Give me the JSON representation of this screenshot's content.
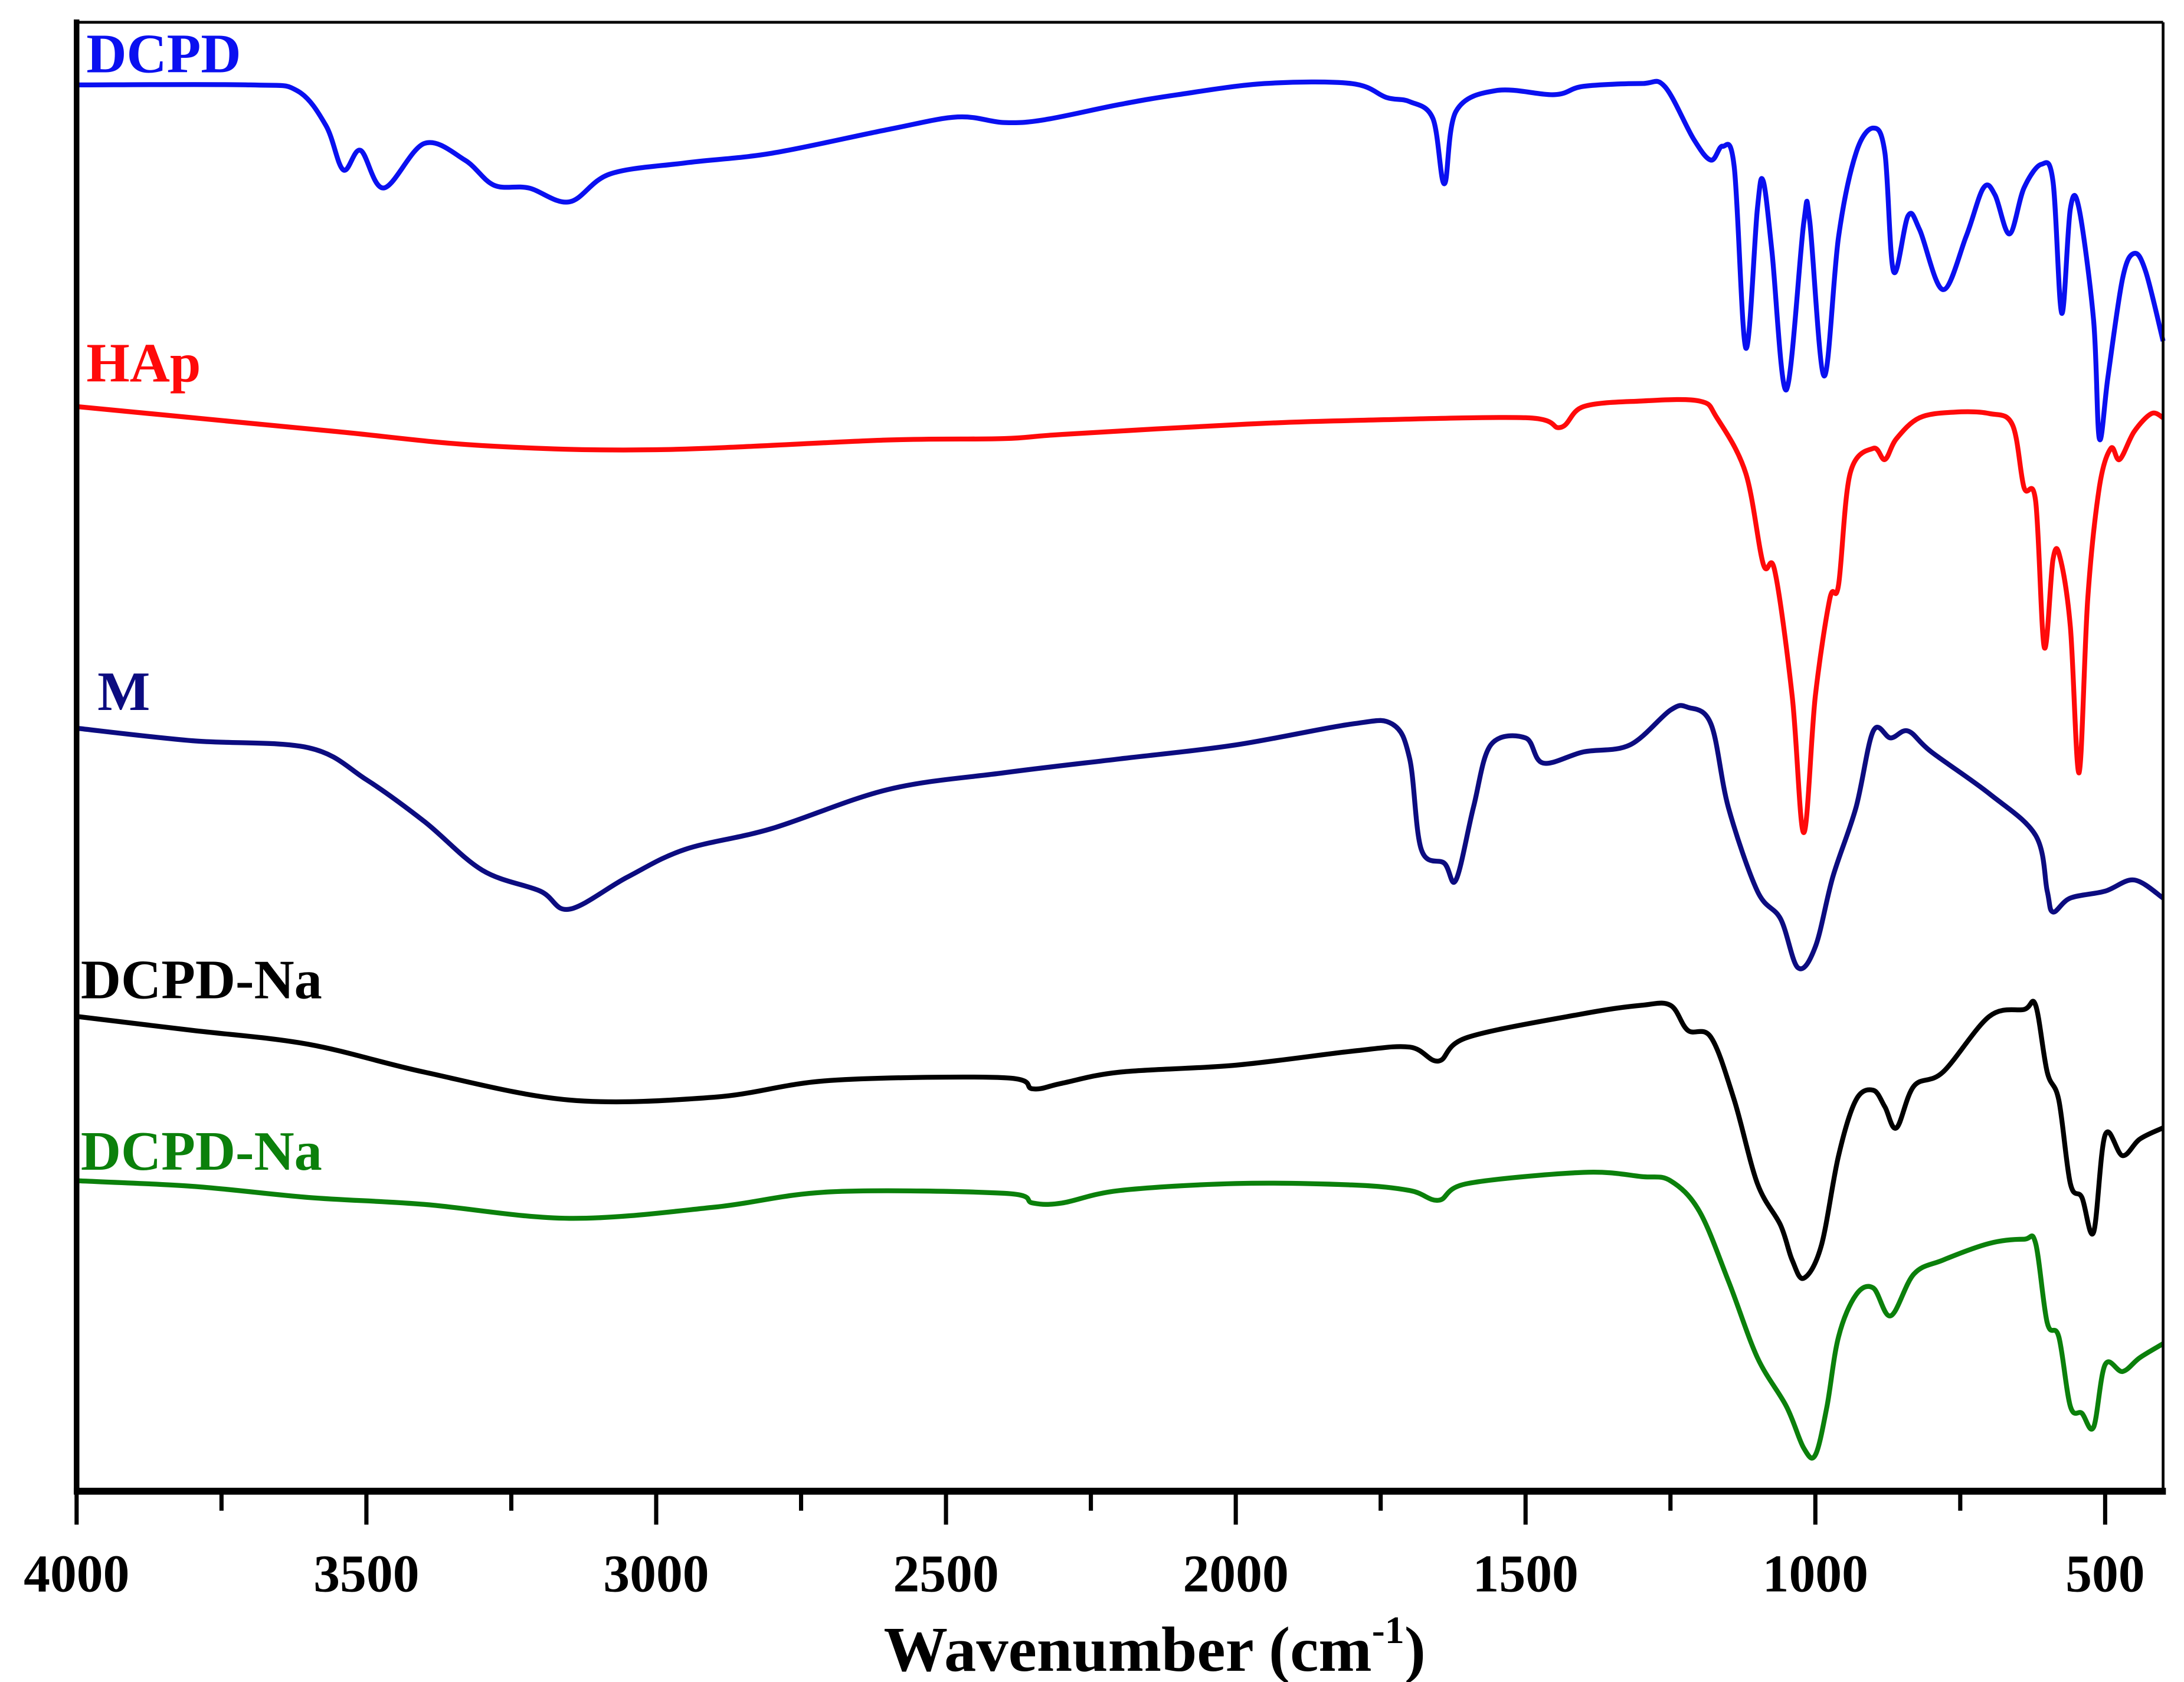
{
  "chart_data": {
    "type": "line",
    "title": "",
    "xlabel": "Wavenumber (cm",
    "xlabel_sup": "-1",
    "xlabel_close": ")",
    "ylabel": "",
    "xlim": [
      4000,
      400
    ],
    "ylim": [
      0,
      1054
    ],
    "y_units": "arbitrary (stacked transmittance)",
    "grid": false,
    "x_ticks": [
      4000,
      3500,
      3000,
      2500,
      2000,
      1500,
      1000,
      500
    ],
    "x_minor_ticks": [
      3750,
      3250,
      2750,
      2250,
      1750,
      1250,
      750
    ],
    "series": [
      {
        "name": "DCPD",
        "color": "#0a10f0",
        "points": [
          [
            4000,
            1009
          ],
          [
            3700,
            1009
          ],
          [
            3620,
            1005
          ],
          [
            3570,
            980
          ],
          [
            3540,
            948
          ],
          [
            3510,
            962
          ],
          [
            3470,
            935
          ],
          [
            3400,
            967
          ],
          [
            3330,
            955
          ],
          [
            3280,
            937
          ],
          [
            3220,
            935
          ],
          [
            3150,
            925
          ],
          [
            3080,
            945
          ],
          [
            2950,
            953
          ],
          [
            2800,
            960
          ],
          [
            2600,
            977
          ],
          [
            2480,
            986
          ],
          [
            2400,
            982
          ],
          [
            2330,
            984
          ],
          [
            2200,
            995
          ],
          [
            2100,
            1002
          ],
          [
            1950,
            1010
          ],
          [
            1800,
            1010
          ],
          [
            1740,
            1000
          ],
          [
            1700,
            997
          ],
          [
            1660,
            985
          ],
          [
            1640,
            938
          ],
          [
            1620,
            990
          ],
          [
            1550,
            1005
          ],
          [
            1450,
            1002
          ],
          [
            1400,
            1008
          ],
          [
            1300,
            1010
          ],
          [
            1260,
            1008
          ],
          [
            1210,
            970
          ],
          [
            1180,
            955
          ],
          [
            1160,
            965
          ],
          [
            1140,
            950
          ],
          [
            1120,
            820
          ],
          [
            1100,
            920
          ],
          [
            1090,
            940
          ],
          [
            1075,
            890
          ],
          [
            1050,
            790
          ],
          [
            1020,
            910
          ],
          [
            1010,
            912
          ],
          [
            985,
            800
          ],
          [
            960,
            900
          ],
          [
            930,
            960
          ],
          [
            900,
            978
          ],
          [
            880,
            960
          ],
          [
            865,
            875
          ],
          [
            840,
            915
          ],
          [
            820,
            905
          ],
          [
            780,
            862
          ],
          [
            740,
            900
          ],
          [
            710,
            935
          ],
          [
            690,
            930
          ],
          [
            665,
            902
          ],
          [
            640,
            935
          ],
          [
            610,
            952
          ],
          [
            590,
            940
          ],
          [
            575,
            845
          ],
          [
            560,
            920
          ],
          [
            545,
            920
          ],
          [
            520,
            840
          ],
          [
            510,
            755
          ],
          [
            495,
            800
          ],
          [
            470,
            870
          ],
          [
            450,
            888
          ],
          [
            430,
            875
          ],
          [
            400,
            825
          ]
        ]
      },
      {
        "name": "HAp",
        "color": "#ff0a0a",
        "points": [
          [
            4000,
            778
          ],
          [
            3800,
            770
          ],
          [
            3550,
            760
          ],
          [
            3300,
            750
          ],
          [
            3000,
            747
          ],
          [
            2600,
            754
          ],
          [
            2400,
            755
          ],
          [
            2300,
            758
          ],
          [
            2000,
            765
          ],
          [
            1800,
            768
          ],
          [
            1500,
            770
          ],
          [
            1440,
            763
          ],
          [
            1400,
            778
          ],
          [
            1300,
            782
          ],
          [
            1200,
            782
          ],
          [
            1170,
            770
          ],
          [
            1120,
            730
          ],
          [
            1090,
            665
          ],
          [
            1070,
            660
          ],
          [
            1040,
            570
          ],
          [
            1020,
            472
          ],
          [
            1000,
            570
          ],
          [
            975,
            640
          ],
          [
            960,
            650
          ],
          [
            940,
            730
          ],
          [
            900,
            748
          ],
          [
            880,
            740
          ],
          [
            860,
            755
          ],
          [
            820,
            770
          ],
          [
            760,
            774
          ],
          [
            700,
            773
          ],
          [
            660,
            765
          ],
          [
            640,
            720
          ],
          [
            620,
            710
          ],
          [
            605,
            605
          ],
          [
            590,
            668
          ],
          [
            578,
            670
          ],
          [
            560,
            620
          ],
          [
            545,
            515
          ],
          [
            530,
            640
          ],
          [
            510,
            720
          ],
          [
            490,
            748
          ],
          [
            475,
            740
          ],
          [
            450,
            760
          ],
          [
            420,
            773
          ],
          [
            400,
            770
          ]
        ]
      },
      {
        "name": "M",
        "color": "#0c0c80",
        "points": [
          [
            4000,
            547
          ],
          [
            3800,
            538
          ],
          [
            3600,
            533
          ],
          [
            3500,
            510
          ],
          [
            3400,
            480
          ],
          [
            3300,
            445
          ],
          [
            3200,
            430
          ],
          [
            3150,
            417
          ],
          [
            3050,
            440
          ],
          [
            2950,
            460
          ],
          [
            2800,
            475
          ],
          [
            2600,
            503
          ],
          [
            2400,
            515
          ],
          [
            2200,
            525
          ],
          [
            2000,
            535
          ],
          [
            1800,
            550
          ],
          [
            1730,
            550
          ],
          [
            1700,
            525
          ],
          [
            1680,
            460
          ],
          [
            1640,
            450
          ],
          [
            1620,
            438
          ],
          [
            1590,
            490
          ],
          [
            1560,
            535
          ],
          [
            1500,
            540
          ],
          [
            1470,
            522
          ],
          [
            1400,
            530
          ],
          [
            1320,
            535
          ],
          [
            1250,
            560
          ],
          [
            1220,
            562
          ],
          [
            1180,
            550
          ],
          [
            1150,
            490
          ],
          [
            1100,
            430
          ],
          [
            1060,
            410
          ],
          [
            1030,
            375
          ],
          [
            1000,
            390
          ],
          [
            970,
            440
          ],
          [
            930,
            490
          ],
          [
            900,
            545
          ],
          [
            870,
            540
          ],
          [
            840,
            545
          ],
          [
            800,
            530
          ],
          [
            700,
            500
          ],
          [
            620,
            470
          ],
          [
            600,
            430
          ],
          [
            590,
            415
          ],
          [
            560,
            425
          ],
          [
            500,
            430
          ],
          [
            450,
            438
          ],
          [
            400,
            425
          ]
        ]
      },
      {
        "name": "DCPD-Na",
        "color": "#000000",
        "points": [
          [
            4000,
            340
          ],
          [
            3800,
            330
          ],
          [
            3600,
            320
          ],
          [
            3400,
            300
          ],
          [
            3150,
            280
          ],
          [
            2900,
            282
          ],
          [
            2700,
            294
          ],
          [
            2400,
            296
          ],
          [
            2350,
            288
          ],
          [
            2300,
            292
          ],
          [
            2200,
            300
          ],
          [
            2000,
            305
          ],
          [
            1800,
            315
          ],
          [
            1700,
            318
          ],
          [
            1650,
            308
          ],
          [
            1600,
            325
          ],
          [
            1400,
            342
          ],
          [
            1300,
            348
          ],
          [
            1250,
            348
          ],
          [
            1220,
            330
          ],
          [
            1180,
            325
          ],
          [
            1140,
            280
          ],
          [
            1100,
            220
          ],
          [
            1060,
            190
          ],
          [
            1040,
            165
          ],
          [
            1020,
            152
          ],
          [
            990,
            175
          ],
          [
            960,
            240
          ],
          [
            930,
            280
          ],
          [
            900,
            287
          ],
          [
            880,
            275
          ],
          [
            860,
            260
          ],
          [
            830,
            290
          ],
          [
            780,
            300
          ],
          [
            700,
            340
          ],
          [
            640,
            345
          ],
          [
            620,
            348
          ],
          [
            600,
            300
          ],
          [
            580,
            280
          ],
          [
            560,
            220
          ],
          [
            540,
            210
          ],
          [
            520,
            185
          ],
          [
            500,
            255
          ],
          [
            470,
            240
          ],
          [
            440,
            252
          ],
          [
            400,
            260
          ]
        ]
      },
      {
        "name": "DCPD-Na",
        "color": "#0b800b",
        "points": [
          [
            4000,
            222
          ],
          [
            3800,
            218
          ],
          [
            3600,
            210
          ],
          [
            3400,
            205
          ],
          [
            3150,
            195
          ],
          [
            2900,
            203
          ],
          [
            2700,
            214
          ],
          [
            2400,
            213
          ],
          [
            2350,
            206
          ],
          [
            2300,
            206
          ],
          [
            2200,
            215
          ],
          [
            2000,
            220
          ],
          [
            1800,
            219
          ],
          [
            1700,
            215
          ],
          [
            1650,
            208
          ],
          [
            1600,
            220
          ],
          [
            1400,
            228
          ],
          [
            1300,
            225
          ],
          [
            1250,
            222
          ],
          [
            1200,
            200
          ],
          [
            1150,
            150
          ],
          [
            1100,
            95
          ],
          [
            1050,
            60
          ],
          [
            1020,
            30
          ],
          [
            1000,
            25
          ],
          [
            980,
            60
          ],
          [
            960,
            110
          ],
          [
            930,
            140
          ],
          [
            900,
            145
          ],
          [
            870,
            125
          ],
          [
            830,
            155
          ],
          [
            780,
            165
          ],
          [
            700,
            177
          ],
          [
            640,
            180
          ],
          [
            620,
            177
          ],
          [
            600,
            120
          ],
          [
            580,
            110
          ],
          [
            560,
            60
          ],
          [
            540,
            55
          ],
          [
            520,
            45
          ],
          [
            500,
            90
          ],
          [
            470,
            85
          ],
          [
            440,
            95
          ],
          [
            400,
            105
          ]
        ]
      }
    ]
  }
}
